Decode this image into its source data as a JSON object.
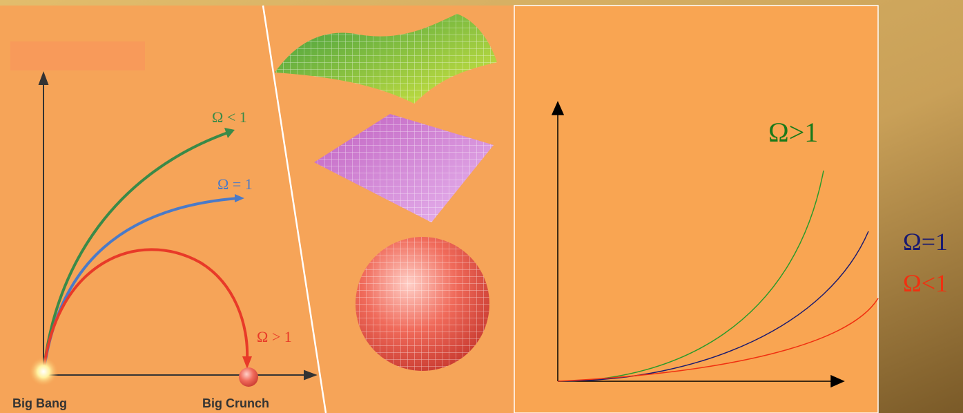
{
  "left_figure": {
    "labels": [
      "Ω < 1",
      "Ω = 1",
      "Ω > 1"
    ],
    "start_label": "Big Bang",
    "end_label": "Big Crunch"
  },
  "right_figure": {
    "labels": [
      "Ω>1",
      "Ω=1",
      "Ω<1"
    ]
  }
}
